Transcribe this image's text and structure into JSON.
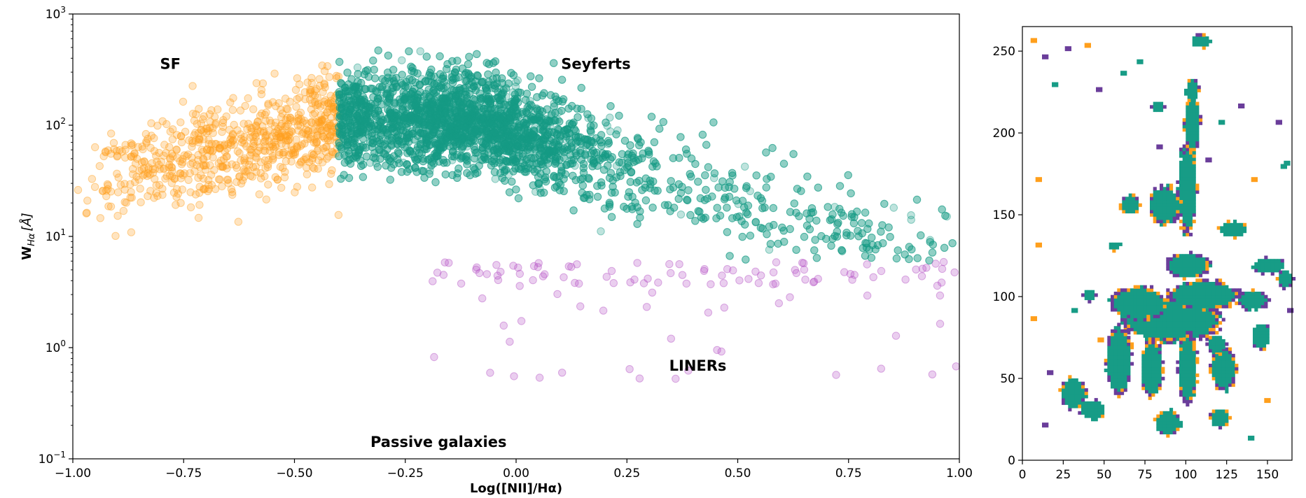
{
  "chart_data": [
    {
      "type": "scatter",
      "title": "",
      "xlabel": "Log([NII]/Hα)",
      "ylabel_main": "W",
      "ylabel_sub": "Hα",
      "ylabel_unit": "[Å]",
      "xlim": [
        -1.0,
        1.0
      ],
      "ylim": [
        0.1,
        1000
      ],
      "yscale": "log",
      "x_ticks": [
        "−1.00",
        "−0.75",
        "−0.50",
        "−0.25",
        "0.00",
        "0.25",
        "0.50",
        "0.75",
        "1.00"
      ],
      "y_ticks": [
        {
          "value": 0.1,
          "base": "10",
          "exp": "−1"
        },
        {
          "value": 1,
          "base": "10",
          "exp": "0"
        },
        {
          "value": 10,
          "base": "10",
          "exp": "1"
        },
        {
          "value": 100,
          "base": "10",
          "exp": "2"
        },
        {
          "value": 1000,
          "base": "10",
          "exp": "3"
        }
      ],
      "annotations": [
        {
          "text": "SF",
          "x": -0.78,
          "y": 320
        },
        {
          "text": "Seyferts",
          "x": 0.18,
          "y": 320
        },
        {
          "text": "LINERs",
          "x": 0.41,
          "y": 0.62
        },
        {
          "text": "Passive galaxies",
          "x": -0.175,
          "y": 0.128
        }
      ],
      "series": [
        {
          "color": "#ff9f1c",
          "region": "SF",
          "x_range": [
            -1.0,
            -0.4
          ],
          "center": [
            -0.55,
            70
          ],
          "n_points": 700
        },
        {
          "color": "#179c86",
          "region": "Seyferts",
          "x_range": [
            -0.4,
            1.0
          ],
          "center": [
            -0.1,
            110
          ],
          "n_points": 4200
        },
        {
          "color": "#b44fc4",
          "region": "LINERs",
          "x_range": [
            -0.2,
            1.0
          ],
          "y_range": [
            0.5,
            6
          ],
          "n_points": 120
        }
      ],
      "grid": false
    },
    {
      "type": "scatter",
      "title": "",
      "xlim": [
        0,
        165
      ],
      "ylim": [
        0,
        265
      ],
      "x_ticks": [
        "0",
        "25",
        "50",
        "75",
        "100",
        "125",
        "150"
      ],
      "y_ticks": [
        "0",
        "50",
        "100",
        "150",
        "200",
        "250"
      ],
      "grid": false,
      "pixel_classes": [
        {
          "color": "#179c86"
        },
        {
          "color": "#ff9f1c"
        },
        {
          "color": "#6a3d9a"
        }
      ]
    }
  ]
}
